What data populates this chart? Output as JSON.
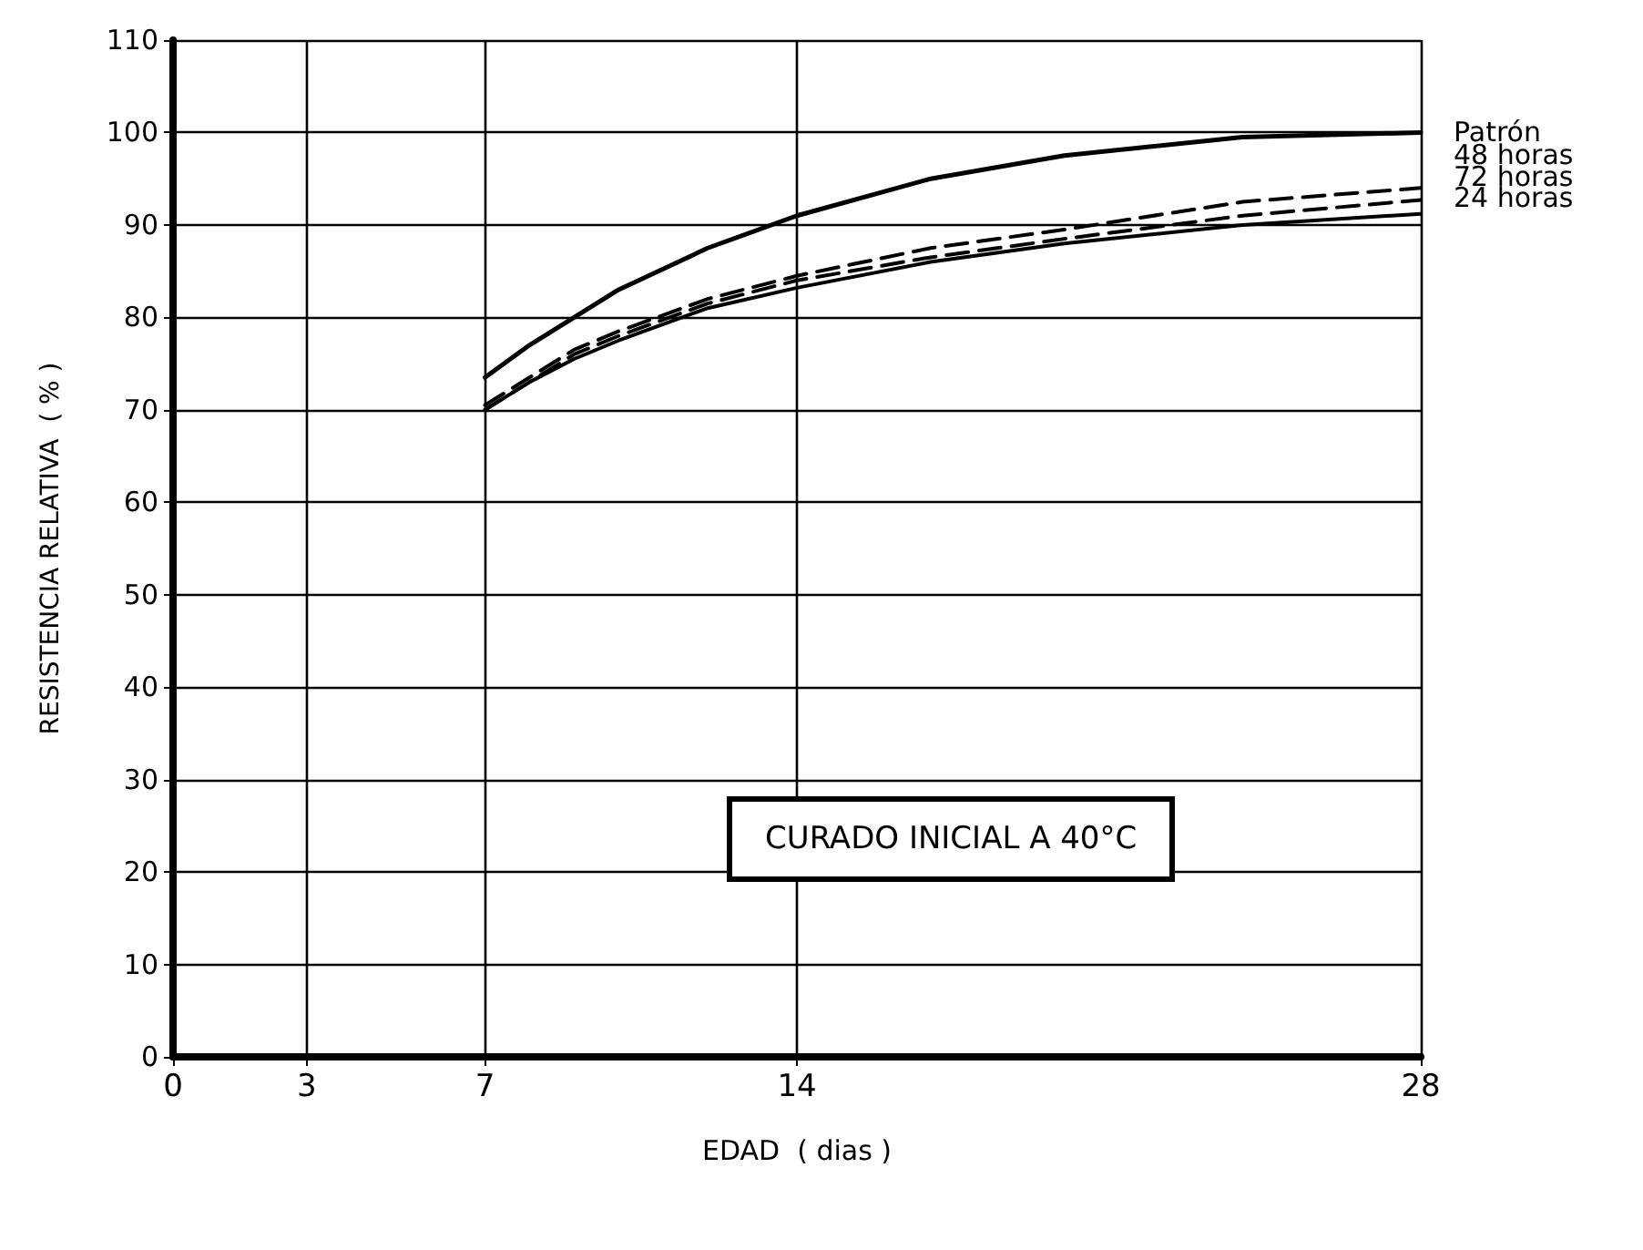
{
  "chart_data": {
    "type": "line",
    "xlabel": "EDAD  ( dias )",
    "ylabel": "RESISTENCIA RELATIVA  ( % )",
    "xlim": [
      0,
      28
    ],
    "xticks": [
      0,
      3,
      7,
      14,
      28
    ],
    "ylim": [
      0,
      110
    ],
    "yticks": [
      0,
      10,
      20,
      30,
      40,
      50,
      60,
      70,
      80,
      90,
      100,
      110
    ],
    "grid": true,
    "legend": false,
    "marker": "none",
    "x": [
      7,
      8,
      9,
      10,
      12,
      14,
      17,
      20,
      24,
      28
    ],
    "series": [
      {
        "name": "Patrón",
        "color": "#000000",
        "line_style": "solid",
        "values": [
          73.5,
          77,
          80,
          83,
          87.5,
          91,
          95,
          97.5,
          99.5,
          100
        ]
      },
      {
        "name": "48 horas",
        "color": "#000000",
        "line_style": "dashed",
        "values": [
          70.5,
          73.5,
          76.5,
          78.5,
          82,
          84.5,
          87.5,
          89.5,
          92.5,
          94
        ]
      },
      {
        "name": "72 horas",
        "color": "#000000",
        "line_style": "dashed",
        "values": [
          70,
          73,
          76,
          78,
          81.5,
          84,
          86.5,
          88.5,
          91,
          92.7
        ]
      },
      {
        "name": "24 horas",
        "color": "#000000",
        "line_style": "solid",
        "values": [
          70,
          73,
          75.5,
          77.5,
          81,
          83.2,
          86,
          88,
          90,
          91.2
        ]
      }
    ],
    "annotations": [
      "CURADO INICIAL A 40°C"
    ]
  }
}
